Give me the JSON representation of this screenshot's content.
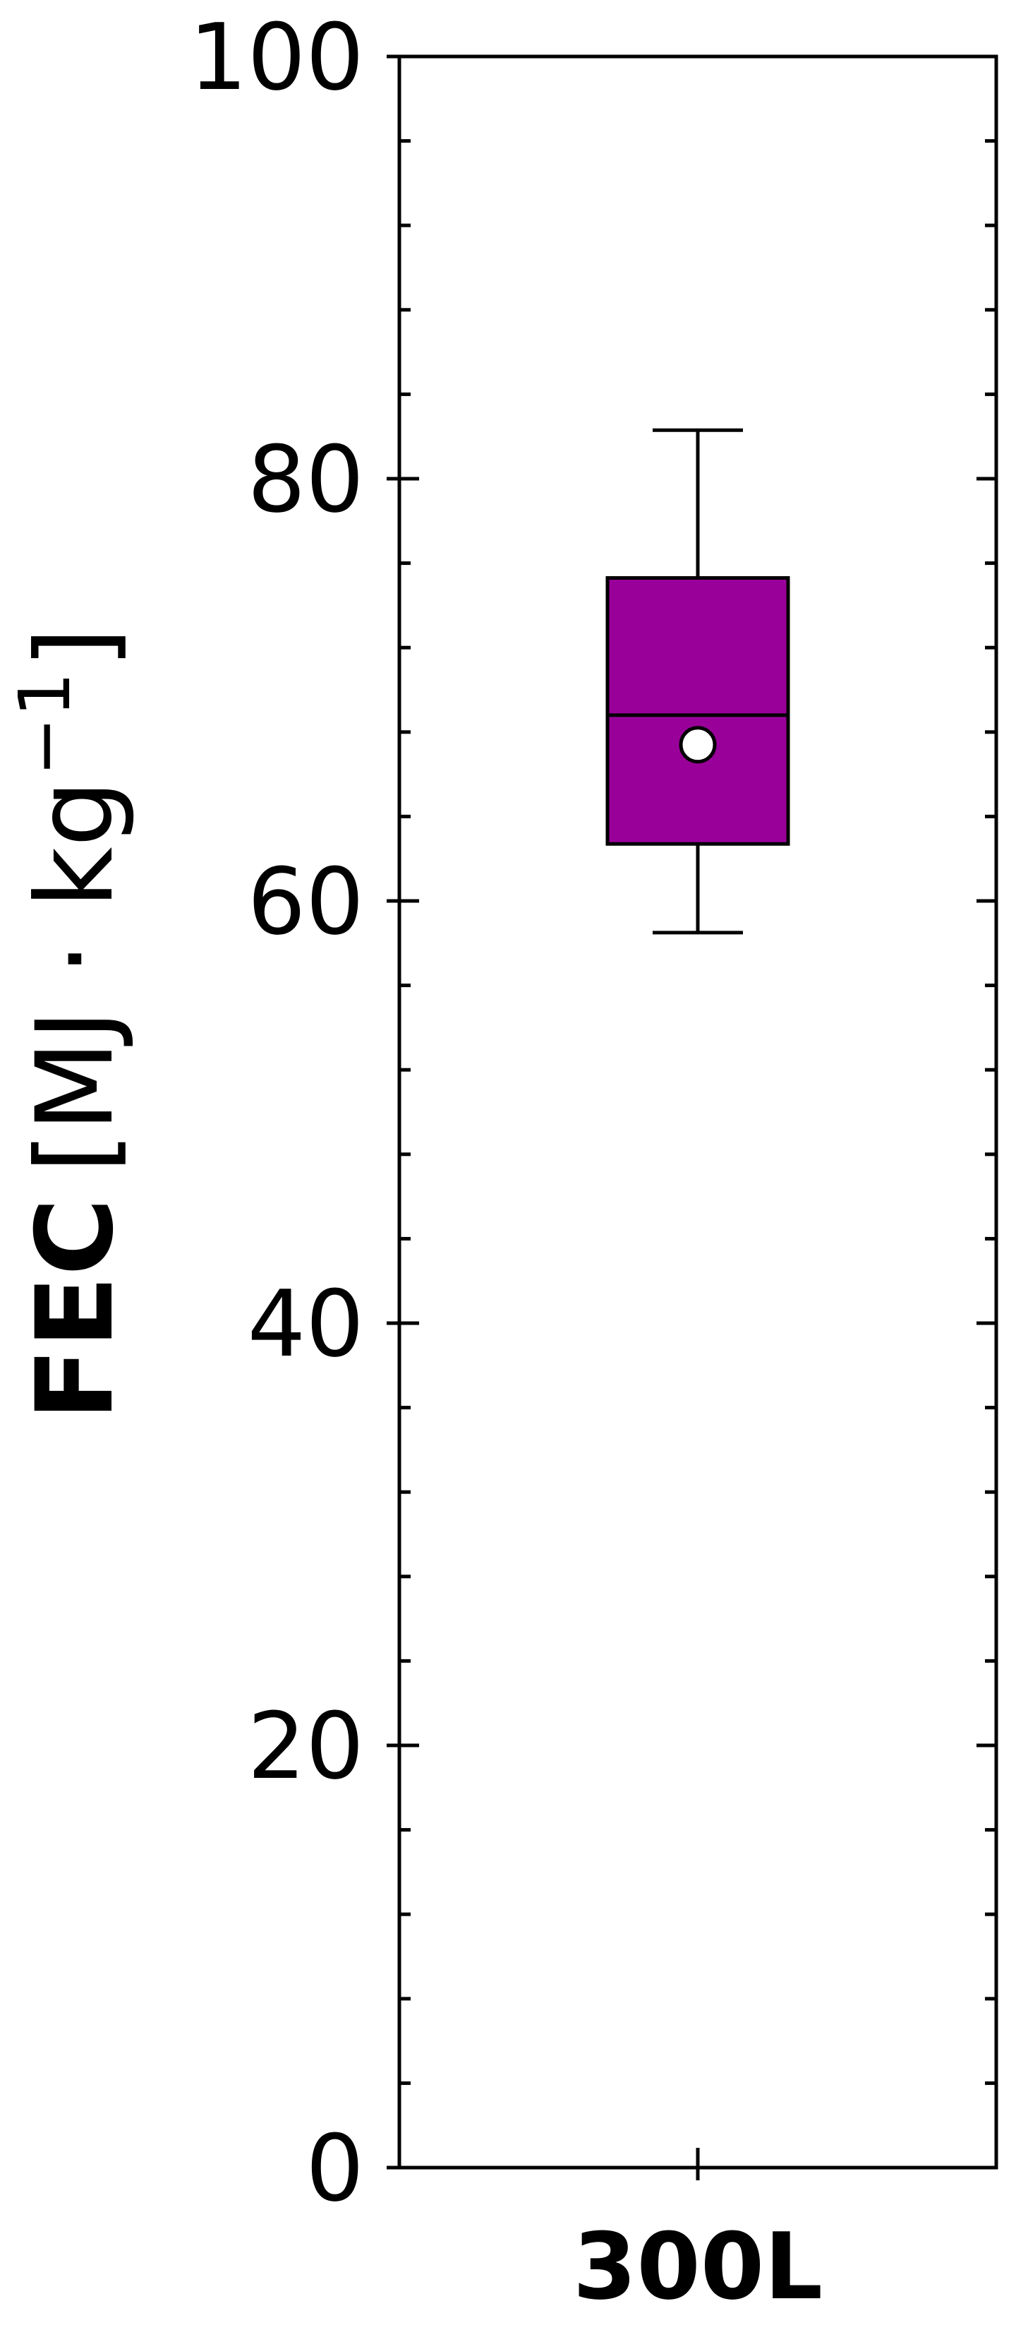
{
  "chart_data": {
    "type": "box",
    "title": "",
    "xlabel": "",
    "ylabel": {
      "main": "FEC",
      "unit": "[MJ · kg",
      "exponent": "−1",
      "close": "]"
    },
    "ylim": [
      0,
      100
    ],
    "y_major_ticks": [
      0,
      20,
      40,
      60,
      80,
      100
    ],
    "y_minor_step": 4,
    "categories": [
      "300L"
    ],
    "boxes": [
      {
        "category": "300L",
        "whisker_low": 58.5,
        "q1": 62.7,
        "median": 68.8,
        "q3": 75.3,
        "whisker_high": 82.3,
        "mean": 67.4,
        "color": "#990099"
      }
    ],
    "grid": false,
    "legend": "none"
  }
}
